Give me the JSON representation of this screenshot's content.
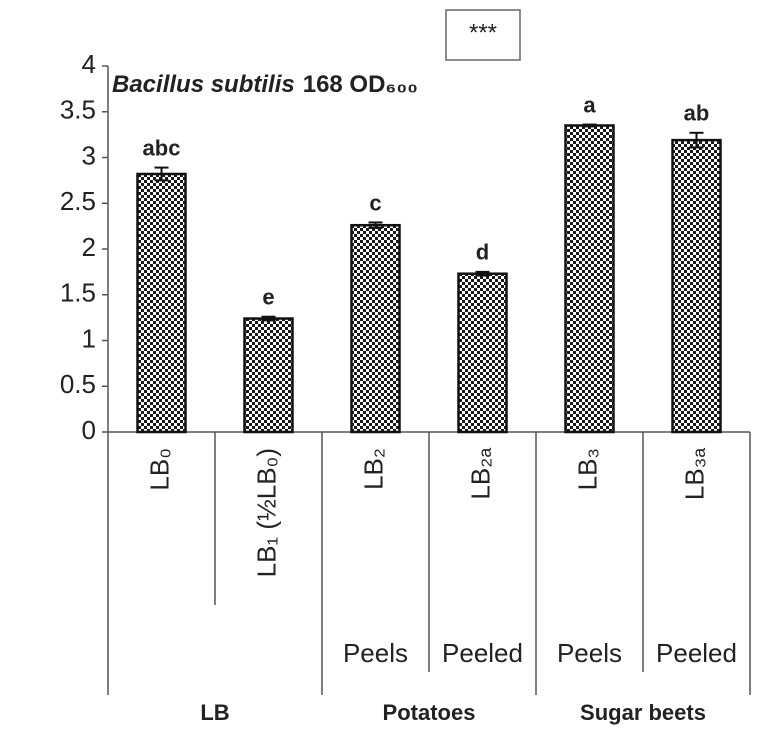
{
  "chart_data": {
    "type": "bar",
    "title_species": "Bacillus subtilis",
    "title_rest": "168 OD₆₀₀",
    "annotation": "***",
    "categories": [
      "LB₀",
      "LB₁ (½LB₀)",
      "LB₂",
      "LB₂ₐ",
      "LB₃",
      "LB₃ₐ"
    ],
    "subgroups": [
      null,
      null,
      "Peels",
      "Peeled",
      "Peels",
      "Peeled"
    ],
    "groups": [
      "LB",
      "Potatoes",
      "Sugar beets"
    ],
    "values": [
      2.82,
      1.24,
      2.26,
      1.73,
      3.35,
      3.19
    ],
    "errors": [
      0.07,
      0.02,
      0.03,
      0.02,
      0.01,
      0.08
    ],
    "letters": [
      "abc",
      "e",
      "c",
      "d",
      "a",
      "ab"
    ],
    "color": "#1a1a1a",
    "ylim": [
      0,
      4
    ],
    "yticks": [
      0,
      0.5,
      1,
      1.5,
      2,
      2.5,
      3,
      3.5,
      4
    ]
  }
}
